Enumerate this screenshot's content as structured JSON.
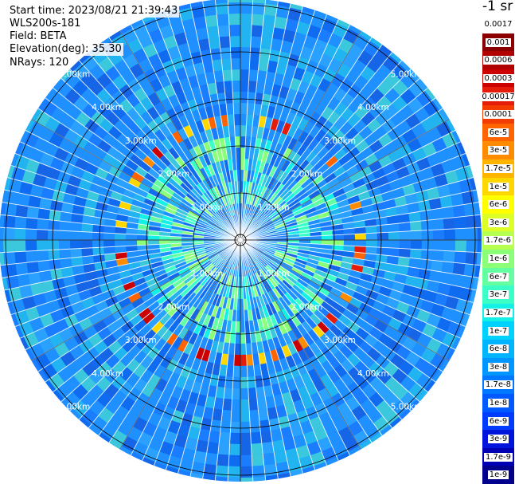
{
  "info": {
    "start_time": "Start time: 2023/08/21 21:39:43",
    "instrument": "WLS200s-181",
    "field": "Field: BETA",
    "elevation": "Elevation(deg): 35.30",
    "nrays": "NRays: 120"
  },
  "colorbar": {
    "title": "-1 sr",
    "labels": [
      "0.0017",
      "0.001",
      "0.0006",
      "0.0003",
      "0.00017",
      "0.0001",
      "6e-5",
      "3e-5",
      "1.7e-5",
      "1e-5",
      "6e-6",
      "3e-6",
      "1.7e-6",
      "1e-6",
      "6e-7",
      "3e-7",
      "1.7e-7",
      "1e-7",
      "6e-8",
      "3e-8",
      "1.7e-8",
      "1e-8",
      "6e-9",
      "3e-9",
      "1.7e-9",
      "1e-9"
    ],
    "colors": [
      "#ffffff",
      "#8b0000",
      "#b00000",
      "#cc0000",
      "#e61c0a",
      "#f23c00",
      "#ff6400",
      "#ff8c00",
      "#ffb400",
      "#ffd700",
      "#ffff00",
      "#dcff28",
      "#b4ff50",
      "#8cff78",
      "#64ffa0",
      "#3cffc8",
      "#14f0e6",
      "#00d2ff",
      "#00b4ff",
      "#0096ff",
      "#0078ff",
      "#005aff",
      "#003cff",
      "#0014dc",
      "#0000b4",
      "#00008c"
    ]
  },
  "range_rings": {
    "labels": [
      "1.00km",
      "2.00km",
      "3.00km",
      "4.00km",
      "5.00km"
    ]
  },
  "map": {
    "background_color": "#1e90ff",
    "rays": 120
  }
}
